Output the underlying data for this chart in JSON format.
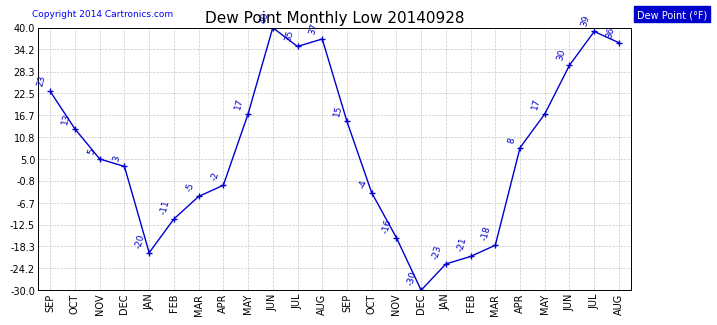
{
  "title": "Dew Point Monthly Low 20140928",
  "copyright": "Copyright 2014 Cartronics.com",
  "legend_label": "Dew Point (°F)",
  "categories": [
    "SEP",
    "OCT",
    "NOV",
    "DEC",
    "JAN",
    "FEB",
    "MAR",
    "APR",
    "MAY",
    "JUN",
    "JUL",
    "AUG",
    "SEP",
    "OCT",
    "NOV",
    "DEC",
    "JAN",
    "FEB",
    "MAR",
    "APR",
    "MAY",
    "JUN",
    "JUL",
    "AUG"
  ],
  "values": [
    23,
    13,
    5,
    3,
    -20,
    -11,
    -5,
    -2,
    17,
    40,
    35,
    37,
    15,
    -4,
    -16,
    -30,
    -23,
    -21,
    -18,
    8,
    17,
    30,
    39,
    36
  ],
  "ylim": [
    -30,
    40
  ],
  "yticks": [
    40.0,
    34.2,
    28.3,
    22.5,
    16.7,
    10.8,
    5.0,
    -0.8,
    -6.7,
    -12.5,
    -18.3,
    -24.2,
    -30.0
  ],
  "line_color": "#0000CC",
  "marker_color": "#0000CC",
  "grid_color": "#BBBBBB",
  "bg_color": "#FFFFFF",
  "title_fontsize": 11,
  "label_fontsize": 6.5,
  "tick_fontsize": 7,
  "legend_bg": "#0000CC",
  "legend_fg": "#FFFFFF"
}
